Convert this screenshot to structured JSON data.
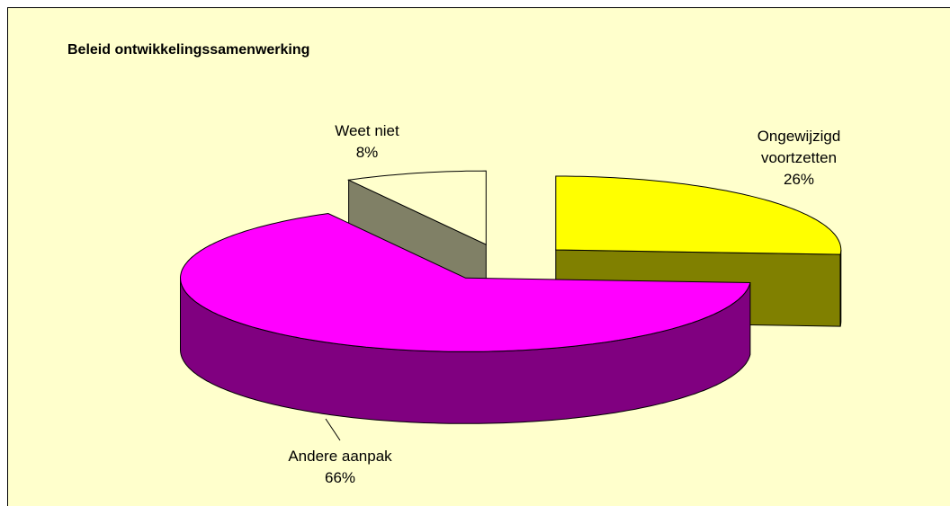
{
  "chart_data": {
    "type": "pie3d",
    "title": "Beleid ontwikkelingssamenwerking",
    "categories": [
      "Ongewijzigd voortzetten",
      "Andere aanpak",
      "Weet niet"
    ],
    "values": [
      26,
      66,
      8
    ],
    "value_labels": [
      "26%",
      "66%",
      "8%"
    ],
    "colors": [
      "#ffff00",
      "#ff00ff",
      "#ffffcc"
    ],
    "side_colors": [
      "#808000",
      "#800080",
      "#808066"
    ]
  }
}
